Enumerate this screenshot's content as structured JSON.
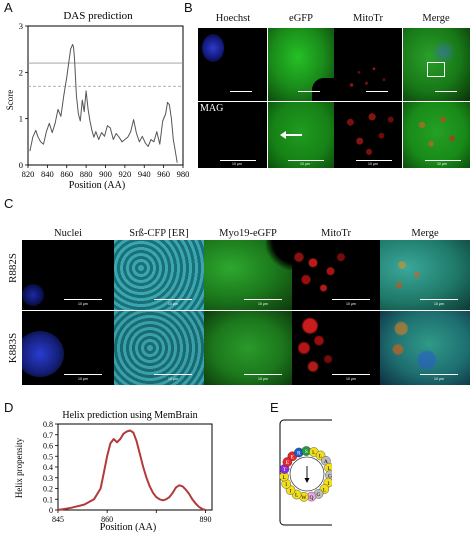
{
  "panels": {
    "A": {
      "letter": "A"
    },
    "B": {
      "letter": "B"
    },
    "C": {
      "letter": "C"
    },
    "D": {
      "letter": "D"
    },
    "E": {
      "letter": "E"
    }
  },
  "panelB": {
    "columns": [
      "Hoechst",
      "eGFP",
      "MitoTr",
      "Merge"
    ],
    "inset_label": "MAG",
    "scale_text": "10 μm"
  },
  "panelC": {
    "columns": [
      "Nuclei",
      "Srß-CFP [ER]",
      "Myo19-eGFP",
      "MitoTr",
      "Merge"
    ],
    "rows": [
      "R882S",
      "K883S"
    ],
    "scale_text": "10 μm"
  },
  "wheel": {
    "residues": [
      {
        "letter": "E",
        "color": "#e8232a"
      },
      {
        "letter": "R",
        "color": "#1a5ccc"
      },
      {
        "letter": "S",
        "color": "#1f9a3d"
      },
      {
        "letter": "L",
        "color": "#f2df1b"
      },
      {
        "letter": "L",
        "color": "#f2df1b"
      },
      {
        "letter": "A",
        "color": "#bdbdbd"
      },
      {
        "letter": "L",
        "color": "#f2df1b"
      },
      {
        "letter": "G",
        "color": "#bdbdbd"
      },
      {
        "letter": "I",
        "color": "#f2df1b"
      },
      {
        "letter": "L",
        "color": "#f2df1b"
      },
      {
        "letter": "G",
        "color": "#bdbdbd"
      },
      {
        "letter": "Q",
        "color": "#e8a8d8"
      },
      {
        "letter": "W",
        "color": "#f2df1b"
      },
      {
        "letter": "L",
        "color": "#f2df1b"
      },
      {
        "letter": "I",
        "color": "#f2df1b"
      },
      {
        "letter": "I",
        "color": "#f2df1b"
      },
      {
        "letter": "L",
        "color": "#f2df1b"
      },
      {
        "letter": "T",
        "color": "#8a2be2"
      },
      {
        "letter": "E",
        "color": "#e8232a"
      }
    ]
  },
  "chart_data": [
    {
      "id": "das",
      "type": "line",
      "title": "DAS prediction",
      "xlabel": "Position (AA)",
      "ylabel": "Score",
      "xlim": [
        820,
        980
      ],
      "ylim": [
        0,
        3
      ],
      "xticks": [
        820,
        840,
        860,
        880,
        900,
        920,
        940,
        960,
        980
      ],
      "yticks": [
        0,
        1,
        2,
        3
      ],
      "thresholds": [
        {
          "y": 2.2,
          "style": "solid"
        },
        {
          "y": 1.7,
          "style": "dashed"
        }
      ],
      "series": [
        {
          "color": "#555555",
          "x": [
            822,
            825,
            828,
            830,
            833,
            836,
            839,
            842,
            845,
            848,
            851,
            854,
            857,
            860,
            862,
            864,
            866,
            867,
            868,
            870,
            872,
            874,
            876,
            878,
            880,
            882,
            884,
            886,
            888,
            890,
            893,
            896,
            899,
            902,
            905,
            908,
            911,
            914,
            917,
            920,
            923,
            926,
            929,
            932,
            935,
            938,
            941,
            944,
            947,
            950,
            953,
            956,
            959,
            962,
            964,
            966,
            968,
            970,
            972,
            974
          ],
          "y": [
            0.3,
            0.6,
            0.75,
            0.62,
            0.5,
            0.45,
            0.72,
            0.9,
            0.7,
            0.9,
            1.2,
            1.05,
            1.5,
            1.9,
            2.2,
            2.5,
            2.6,
            2.55,
            2.3,
            1.5,
            1.1,
            0.95,
            1.4,
            1.15,
            1.6,
            1.2,
            0.95,
            0.75,
            0.6,
            0.72,
            0.55,
            0.7,
            0.62,
            0.85,
            0.8,
            0.55,
            0.68,
            0.6,
            0.5,
            0.55,
            0.6,
            0.72,
            0.98,
            0.68,
            0.5,
            0.62,
            0.48,
            0.4,
            0.55,
            0.5,
            0.72,
            0.45,
            0.95,
            1.1,
            1.35,
            1.3,
            1.0,
            0.55,
            0.3,
            0.05
          ]
        }
      ]
    },
    {
      "id": "membrain",
      "type": "line",
      "title": "Helix prediction using MemBrain",
      "xlabel": "Position (AA)",
      "ylabel": "Helix propensity",
      "xlim": [
        845,
        892
      ],
      "ylim": [
        0,
        0.8
      ],
      "xticks": [
        845,
        860,
        875,
        890
      ],
      "xticklabels": [
        "845",
        "860",
        "",
        "890"
      ],
      "yticks": [
        0,
        0.1,
        0.2,
        0.3,
        0.4,
        0.5,
        0.6,
        0.7,
        0.8
      ],
      "series": [
        {
          "color": "#b33a3a",
          "x": [
            845,
            849,
            853,
            856,
            858,
            859,
            860,
            861,
            862,
            863,
            864,
            865,
            866,
            867,
            868,
            869,
            870,
            871,
            872,
            873,
            874,
            875,
            876,
            877,
            878,
            879,
            880,
            881,
            882,
            883,
            884,
            885,
            886,
            887,
            888,
            889,
            890
          ],
          "y": [
            0,
            0.02,
            0.05,
            0.1,
            0.2,
            0.35,
            0.5,
            0.62,
            0.66,
            0.63,
            0.66,
            0.71,
            0.73,
            0.74,
            0.72,
            0.64,
            0.52,
            0.4,
            0.3,
            0.22,
            0.16,
            0.12,
            0.1,
            0.09,
            0.1,
            0.12,
            0.16,
            0.21,
            0.23,
            0.22,
            0.19,
            0.15,
            0.1,
            0.06,
            0.03,
            0.01,
            0
          ]
        }
      ]
    }
  ]
}
